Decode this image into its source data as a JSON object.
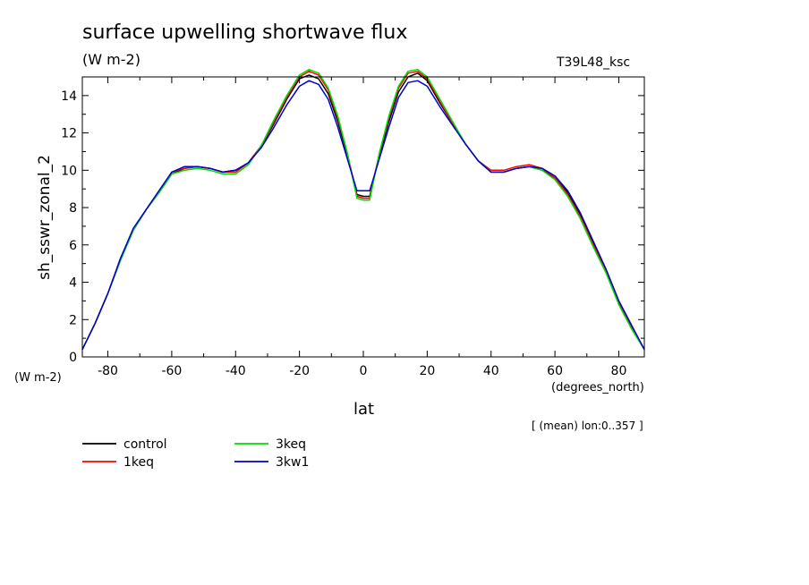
{
  "chart_data": {
    "type": "line",
    "title": "surface upwelling shortwave flux",
    "subtitle": "(W m-2)",
    "run_label": "T39L48_ksc",
    "ylabel": "sh_sswr_zonal_2",
    "y_units": "(W m-2)",
    "xlabel": "lat",
    "x_units": "(degrees_north)",
    "note": "[ (mean) lon:0..357 ]",
    "xlim": [
      -88,
      88
    ],
    "ylim": [
      0,
      15
    ],
    "x_ticks": [
      -80,
      -60,
      -40,
      -20,
      0,
      20,
      40,
      60,
      80
    ],
    "x_tick_labels": [
      "-80",
      "-60",
      "-40",
      "-20",
      "0",
      "20",
      "40",
      "60",
      "80"
    ],
    "y_ticks": [
      0,
      2,
      4,
      6,
      8,
      10,
      12,
      14
    ],
    "y_tick_labels": [
      "0",
      "2",
      "4",
      "6",
      "8",
      "10",
      "12",
      "14"
    ],
    "grid": false,
    "legend_position": "below-left",
    "x": [
      -88,
      -84,
      -80,
      -76,
      -72,
      -68,
      -64,
      -60,
      -56,
      -52,
      -48,
      -44,
      -40,
      -36,
      -32,
      -28,
      -24,
      -20,
      -17,
      -14,
      -11,
      -8,
      -5,
      -2,
      0,
      2,
      5,
      8,
      11,
      14,
      17,
      20,
      24,
      28,
      32,
      36,
      40,
      44,
      48,
      52,
      56,
      60,
      64,
      68,
      72,
      76,
      80,
      84,
      88
    ],
    "series": [
      {
        "name": "control",
        "color": "#000000",
        "values": [
          0.4,
          1.8,
          3.4,
          5.2,
          6.8,
          7.9,
          8.8,
          9.8,
          10.1,
          10.2,
          10.1,
          9.9,
          10.0,
          10.4,
          11.3,
          12.5,
          13.8,
          14.9,
          15.1,
          14.9,
          14.1,
          12.6,
          10.8,
          8.7,
          8.6,
          8.6,
          10.8,
          12.6,
          14.2,
          15.0,
          15.2,
          14.8,
          13.6,
          12.5,
          11.4,
          10.5,
          9.9,
          9.9,
          10.1,
          10.2,
          10.0,
          9.6,
          8.8,
          7.6,
          6.1,
          4.6,
          2.9,
          1.6,
          0.4
        ]
      },
      {
        "name": "1keq",
        "color": "#ff0000",
        "values": [
          0.4,
          1.8,
          3.4,
          5.3,
          6.8,
          7.9,
          8.8,
          9.9,
          10.1,
          10.2,
          10.1,
          9.9,
          9.9,
          10.4,
          11.3,
          12.6,
          13.9,
          15.0,
          15.3,
          15.1,
          14.3,
          12.8,
          10.9,
          8.6,
          8.5,
          8.5,
          10.9,
          12.8,
          14.4,
          15.2,
          15.3,
          14.9,
          13.7,
          12.5,
          11.4,
          10.5,
          10.0,
          10.0,
          10.2,
          10.3,
          10.1,
          9.6,
          8.7,
          7.5,
          6.0,
          4.6,
          2.9,
          1.6,
          0.4
        ]
      },
      {
        "name": "3keq",
        "color": "#00dd00",
        "values": [
          0.4,
          1.8,
          3.4,
          5.2,
          6.8,
          7.9,
          8.8,
          9.8,
          10.0,
          10.1,
          10.0,
          9.8,
          9.8,
          10.3,
          11.3,
          12.7,
          14.0,
          15.1,
          15.4,
          15.2,
          14.4,
          12.9,
          10.9,
          8.5,
          8.4,
          8.4,
          10.9,
          12.9,
          14.5,
          15.3,
          15.4,
          15.0,
          13.8,
          12.6,
          11.4,
          10.5,
          9.9,
          9.9,
          10.1,
          10.2,
          10.0,
          9.5,
          8.6,
          7.4,
          5.9,
          4.5,
          2.8,
          1.5,
          0.4
        ]
      },
      {
        "name": "3kw1",
        "color": "#0000cc",
        "values": [
          0.4,
          1.8,
          3.4,
          5.3,
          6.9,
          7.9,
          8.9,
          9.9,
          10.2,
          10.2,
          10.1,
          9.9,
          10.0,
          10.4,
          11.2,
          12.3,
          13.5,
          14.5,
          14.8,
          14.6,
          13.8,
          12.3,
          10.6,
          8.9,
          8.9,
          8.9,
          10.6,
          12.3,
          13.9,
          14.7,
          14.8,
          14.5,
          13.4,
          12.4,
          11.4,
          10.5,
          9.9,
          9.9,
          10.1,
          10.2,
          10.1,
          9.7,
          8.9,
          7.7,
          6.2,
          4.7,
          3.0,
          1.7,
          0.4
        ]
      }
    ]
  }
}
